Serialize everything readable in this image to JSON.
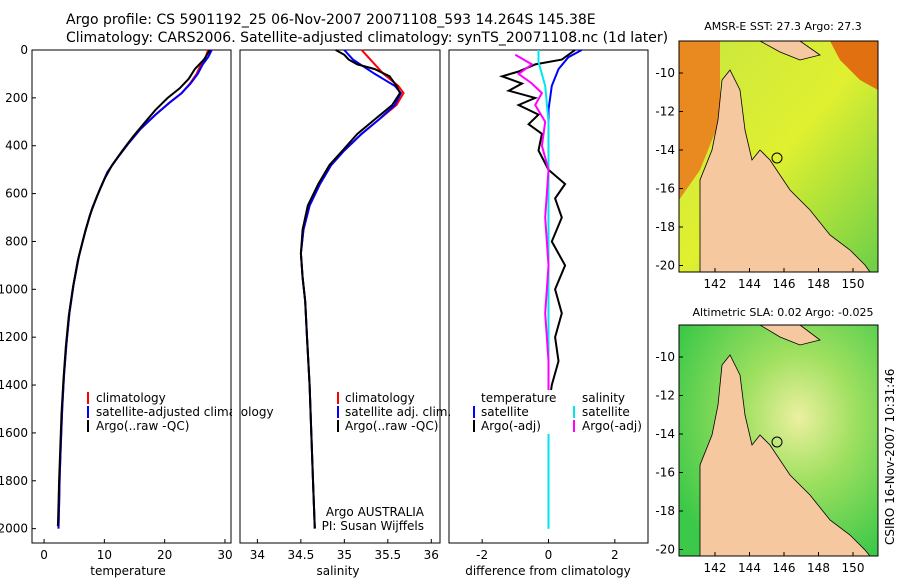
{
  "header": {
    "line1": "Argo profile: CS 5901192_25 06-Nov-2007 20071108_593 14.264S 145.38E",
    "line2": "Climatology: CARS2006. Satellite-adjusted climatology: synTS_20071108.nc (1d later)"
  },
  "colors": {
    "climatology": "#ff0000",
    "satellite": "#0000ff",
    "argo": "#000000",
    "sal_satellite": "#00e5ee",
    "sal_argo": "#ff00ff",
    "land": "#f5c8a0",
    "coast": "#000000"
  },
  "chart_data": [
    {
      "type": "line",
      "xlabel": "temperature",
      "ylabel": "",
      "xlim": [
        -2,
        31
      ],
      "ylim": [
        2060,
        0
      ],
      "x_ticks": [
        0,
        10,
        20,
        30
      ],
      "y_ticks": [
        0,
        200,
        400,
        600,
        800,
        1000,
        1200,
        1400,
        1600,
        1800,
        2000
      ],
      "legend": [
        "climatology",
        "satellite-adjusted climatology",
        "Argo(..raw -QC)"
      ],
      "legend_placement": "lower-right",
      "series": [
        {
          "name": "climatology",
          "color": "#ff0000",
          "points": [
            [
              27.2,
              0
            ],
            [
              26.8,
              30
            ],
            [
              26.0,
              60
            ],
            [
              25.3,
              100
            ],
            [
              24.2,
              140
            ],
            [
              22.8,
              180
            ],
            [
              20.8,
              220
            ],
            [
              18.5,
              270
            ],
            [
              16.0,
              330
            ],
            [
              14.0,
              390
            ],
            [
              12.2,
              450
            ],
            [
              10.5,
              510
            ],
            [
              9.3,
              580
            ],
            [
              8.0,
              660
            ],
            [
              6.9,
              750
            ],
            [
              5.8,
              860
            ],
            [
              4.9,
              980
            ],
            [
              4.2,
              1100
            ],
            [
              3.7,
              1230
            ],
            [
              3.3,
              1360
            ],
            [
              3.0,
              1500
            ],
            [
              2.8,
              1640
            ],
            [
              2.6,
              1780
            ],
            [
              2.5,
              1900
            ],
            [
              2.4,
              2000
            ]
          ]
        },
        {
          "name": "satellite-adjusted climatology",
          "color": "#0000ff",
          "points": [
            [
              27.8,
              0
            ],
            [
              27.2,
              30
            ],
            [
              26.3,
              60
            ],
            [
              25.5,
              100
            ],
            [
              24.3,
              140
            ],
            [
              22.8,
              180
            ],
            [
              20.8,
              220
            ],
            [
              18.5,
              270
            ],
            [
              16.0,
              330
            ],
            [
              14.0,
              390
            ],
            [
              12.2,
              450
            ],
            [
              10.5,
              510
            ],
            [
              9.3,
              580
            ],
            [
              8.0,
              660
            ],
            [
              6.9,
              750
            ],
            [
              5.8,
              860
            ],
            [
              4.9,
              980
            ],
            [
              4.2,
              1100
            ],
            [
              3.7,
              1230
            ],
            [
              3.3,
              1360
            ],
            [
              3.0,
              1500
            ],
            [
              2.8,
              1640
            ],
            [
              2.6,
              1780
            ],
            [
              2.5,
              1900
            ],
            [
              2.4,
              2000
            ]
          ]
        },
        {
          "name": "Argo(..raw -QC)",
          "color": "#000000",
          "points": [
            [
              27.5,
              0
            ],
            [
              26.5,
              40
            ],
            [
              25.0,
              80
            ],
            [
              24.0,
              120
            ],
            [
              22.5,
              160
            ],
            [
              20.5,
              200
            ],
            [
              18.5,
              250
            ],
            [
              16.8,
              300
            ],
            [
              14.8,
              360
            ],
            [
              13.0,
              420
            ],
            [
              11.3,
              480
            ],
            [
              10.0,
              540
            ],
            [
              8.8,
              610
            ],
            [
              7.6,
              690
            ],
            [
              6.6,
              780
            ],
            [
              5.6,
              880
            ],
            [
              4.8,
              990
            ],
            [
              4.1,
              1110
            ],
            [
              3.6,
              1240
            ],
            [
              3.2,
              1380
            ],
            [
              2.9,
              1520
            ],
            [
              2.7,
              1660
            ],
            [
              2.5,
              1800
            ],
            [
              2.4,
              1900
            ],
            [
              2.3,
              1990
            ]
          ]
        }
      ]
    },
    {
      "type": "line",
      "xlabel": "salinity",
      "ylabel": "",
      "xlim": [
        33.8,
        36.1
      ],
      "ylim": [
        2060,
        0
      ],
      "x_ticks": [
        34,
        34.5,
        35,
        35.5,
        36
      ],
      "legend": [
        "climatology",
        "satellite adj. clim.",
        "Argo(..raw -QC)"
      ],
      "legend_placement": "lower-right",
      "annotation": [
        "Argo AUSTRALIA",
        "PI: Susan Wijffels"
      ],
      "series": [
        {
          "name": "climatology",
          "color": "#ff0000",
          "points": [
            [
              35.2,
              0
            ],
            [
              35.3,
              40
            ],
            [
              35.45,
              100
            ],
            [
              35.62,
              150
            ],
            [
              35.68,
              180
            ],
            [
              35.6,
              230
            ],
            [
              35.4,
              290
            ],
            [
              35.2,
              350
            ],
            [
              35.0,
              420
            ],
            [
              34.85,
              480
            ],
            [
              34.72,
              560
            ],
            [
              34.6,
              650
            ],
            [
              34.53,
              750
            ],
            [
              34.5,
              850
            ],
            [
              34.52,
              950
            ],
            [
              34.55,
              1050
            ],
            [
              34.57,
              1200
            ],
            [
              34.6,
              1400
            ],
            [
              34.62,
              1600
            ],
            [
              34.64,
              1800
            ],
            [
              34.66,
              2000
            ]
          ]
        },
        {
          "name": "satellite adj. clim.",
          "color": "#0000ff",
          "points": [
            [
              35.0,
              0
            ],
            [
              35.1,
              40
            ],
            [
              35.35,
              100
            ],
            [
              35.58,
              150
            ],
            [
              35.65,
              180
            ],
            [
              35.58,
              230
            ],
            [
              35.4,
              290
            ],
            [
              35.2,
              350
            ],
            [
              35.0,
              420
            ],
            [
              34.85,
              480
            ],
            [
              34.72,
              560
            ],
            [
              34.6,
              650
            ],
            [
              34.53,
              750
            ],
            [
              34.5,
              850
            ],
            [
              34.52,
              950
            ],
            [
              34.55,
              1050
            ],
            [
              34.57,
              1200
            ],
            [
              34.6,
              1400
            ],
            [
              34.62,
              1600
            ],
            [
              34.64,
              1800
            ],
            [
              34.66,
              2000
            ]
          ]
        },
        {
          "name": "Argo(..raw -QC)",
          "color": "#000000",
          "points": [
            [
              34.9,
              0
            ],
            [
              35.0,
              20
            ],
            [
              35.05,
              40
            ],
            [
              35.15,
              60
            ],
            [
              35.35,
              80
            ],
            [
              35.52,
              110
            ],
            [
              35.6,
              150
            ],
            [
              35.64,
              180
            ],
            [
              35.55,
              230
            ],
            [
              35.35,
              290
            ],
            [
              35.15,
              350
            ],
            [
              34.98,
              420
            ],
            [
              34.83,
              480
            ],
            [
              34.7,
              560
            ],
            [
              34.58,
              650
            ],
            [
              34.52,
              750
            ],
            [
              34.5,
              850
            ],
            [
              34.52,
              950
            ],
            [
              34.55,
              1050
            ],
            [
              34.57,
              1200
            ],
            [
              34.6,
              1400
            ],
            [
              34.62,
              1600
            ],
            [
              34.64,
              1800
            ],
            [
              34.66,
              2000
            ]
          ]
        }
      ]
    },
    {
      "type": "line",
      "xlabel": "difference from climatology",
      "ylabel": "",
      "xlim": [
        -3,
        3
      ],
      "ylim": [
        2060,
        0
      ],
      "x_ticks": [
        -2,
        0,
        2
      ],
      "legend": [
        "temperature",
        "satellite",
        "Argo(-adj)",
        "salinity",
        "satellite",
        "Argo(-adj)"
      ],
      "legend_placement": "lower-middle",
      "series": [
        {
          "name": "temperature satellite",
          "color": "#0000ff",
          "points": [
            [
              1.0,
              0
            ],
            [
              0.6,
              30
            ],
            [
              0.3,
              80
            ],
            [
              0.1,
              150
            ],
            [
              0.0,
              250
            ],
            [
              0.0,
              400
            ],
            [
              0.0,
              600
            ],
            [
              0.0,
              1000
            ],
            [
              0.0,
              1500
            ],
            [
              0.0,
              2000
            ]
          ]
        },
        {
          "name": "temperature Argo(-adj)",
          "color": "#000000",
          "points": [
            [
              0.8,
              0
            ],
            [
              0.4,
              40
            ],
            [
              -0.4,
              60
            ],
            [
              -0.9,
              90
            ],
            [
              -1.4,
              110
            ],
            [
              -0.8,
              140
            ],
            [
              -1.2,
              170
            ],
            [
              -0.4,
              200
            ],
            [
              -0.9,
              230
            ],
            [
              -0.3,
              270
            ],
            [
              -0.6,
              310
            ],
            [
              -0.2,
              350
            ],
            [
              -0.3,
              420
            ],
            [
              0.0,
              500
            ],
            [
              0.5,
              560
            ],
            [
              0.2,
              620
            ],
            [
              0.4,
              700
            ],
            [
              0.1,
              800
            ],
            [
              0.5,
              900
            ],
            [
              0.2,
              1000
            ],
            [
              0.4,
              1100
            ],
            [
              0.2,
              1200
            ],
            [
              0.3,
              1300
            ],
            [
              0.1,
              1400
            ],
            [
              0.0,
              1500
            ],
            [
              0.0,
              1550
            ]
          ]
        },
        {
          "name": "salinity satellite",
          "color": "#00e5ee",
          "points": [
            [
              -0.3,
              0
            ],
            [
              -0.3,
              50
            ],
            [
              -0.1,
              150
            ],
            [
              0.0,
              300
            ],
            [
              0.0,
              500
            ],
            [
              0.0,
              800
            ],
            [
              0.0,
              1200
            ],
            [
              0.0,
              1600
            ],
            [
              0.0,
              2000
            ]
          ]
        },
        {
          "name": "salinity Argo(-adj)",
          "color": "#ff00ff",
          "points": [
            [
              -1.0,
              20
            ],
            [
              -0.5,
              60
            ],
            [
              -0.9,
              100
            ],
            [
              -0.5,
              140
            ],
            [
              -0.2,
              180
            ],
            [
              -0.4,
              230
            ],
            [
              -0.1,
              300
            ],
            [
              -0.2,
              400
            ],
            [
              0.0,
              500
            ],
            [
              -0.1,
              700
            ],
            [
              0.0,
              900
            ],
            [
              -0.1,
              1100
            ],
            [
              0.0,
              1300
            ],
            [
              0.0,
              1550
            ]
          ]
        }
      ]
    }
  ],
  "maps": [
    {
      "title": "AMSR-E SST: 27.3 Argo: 27.3",
      "lon_ticks": [
        "142",
        "144",
        "146",
        "148",
        "150"
      ],
      "lat_ticks": [
        "-10",
        "-12",
        "-14",
        "-16",
        "-18",
        "-20"
      ],
      "argo_position": [
        145.38,
        -14.264
      ]
    },
    {
      "title": "Altimetric SLA: 0.02 Argo: -0.025",
      "lon_ticks": [
        "142",
        "144",
        "146",
        "148",
        "150"
      ],
      "lat_ticks": [
        "-10",
        "-12",
        "-14",
        "-16",
        "-18",
        "-20"
      ],
      "argo_position": [
        145.38,
        -14.264
      ]
    }
  ],
  "footer_stamp": "CSIRO 16-Nov-2007 10:31:46"
}
